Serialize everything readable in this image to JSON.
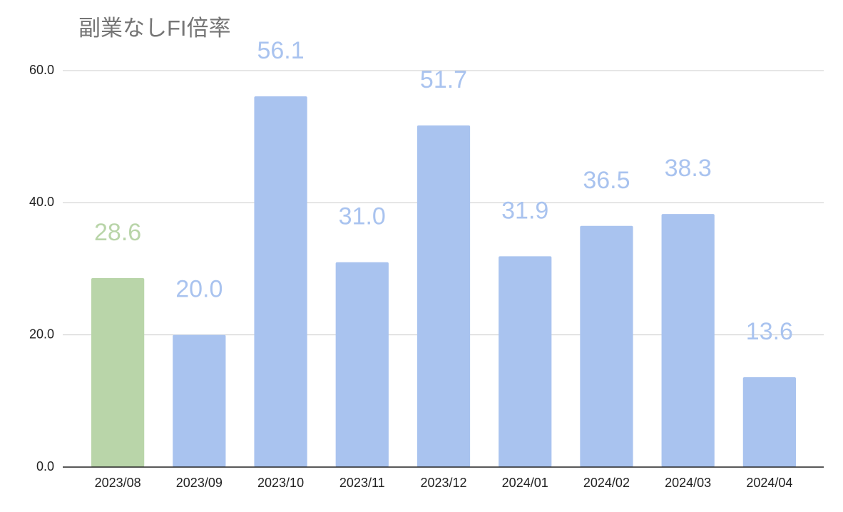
{
  "chart_data": {
    "type": "bar",
    "title": "副業なしFI倍率",
    "categories": [
      "2023/08",
      "2023/09",
      "2023/10",
      "2023/11",
      "2023/12",
      "2024/01",
      "2024/02",
      "2024/03",
      "2024/04"
    ],
    "values": [
      28.6,
      20.0,
      56.1,
      31.0,
      51.7,
      31.9,
      36.5,
      38.3,
      13.6
    ],
    "value_labels": [
      "28.6",
      "20.0",
      "56.1",
      "31.0",
      "51.7",
      "31.9",
      "36.5",
      "38.3",
      "13.6"
    ],
    "colors": [
      "#b9d5a9",
      "#a9c3ef",
      "#a9c3ef",
      "#a9c3ef",
      "#a9c3ef",
      "#a9c3ef",
      "#a9c3ef",
      "#a9c3ef",
      "#a9c3ef"
    ],
    "ylim": [
      0,
      60
    ],
    "yticks": [
      {
        "value": 0,
        "label": "0.0"
      },
      {
        "value": 20,
        "label": "20.0"
      },
      {
        "value": 40,
        "label": "40.0"
      },
      {
        "value": 60,
        "label": "60.0"
      }
    ],
    "grid": true
  }
}
